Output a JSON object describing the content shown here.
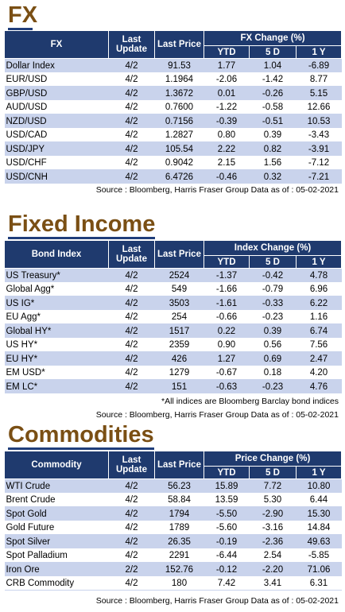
{
  "fx": {
    "title": "FX",
    "headers": {
      "col1": "FX",
      "last_update": "Last Update",
      "last_price": "Last Price",
      "change_group": "FX Change (%)",
      "ytd": "YTD",
      "five_d": "5 D",
      "one_y": "1 Y"
    },
    "rows": [
      {
        "name": "Dollar Index",
        "update": "4/2",
        "price": "91.53",
        "ytd": "1.77",
        "d5": "1.04",
        "y1": "-6.89"
      },
      {
        "name": "EUR/USD",
        "update": "4/2",
        "price": "1.1964",
        "ytd": "-2.06",
        "d5": "-1.42",
        "y1": "8.77"
      },
      {
        "name": "GBP/USD",
        "update": "4/2",
        "price": "1.3672",
        "ytd": "0.01",
        "d5": "-0.26",
        "y1": "5.15"
      },
      {
        "name": "AUD/USD",
        "update": "4/2",
        "price": "0.7600",
        "ytd": "-1.22",
        "d5": "-0.58",
        "y1": "12.66"
      },
      {
        "name": "NZD/USD",
        "update": "4/2",
        "price": "0.7156",
        "ytd": "-0.39",
        "d5": "-0.51",
        "y1": "10.53"
      },
      {
        "name": "USD/CAD",
        "update": "4/2",
        "price": "1.2827",
        "ytd": "0.80",
        "d5": "0.39",
        "y1": "-3.43"
      },
      {
        "name": "USD/JPY",
        "update": "4/2",
        "price": "105.54",
        "ytd": "2.22",
        "d5": "0.82",
        "y1": "-3.91"
      },
      {
        "name": "USD/CHF",
        "update": "4/2",
        "price": "0.9042",
        "ytd": "2.15",
        "d5": "1.56",
        "y1": "-7.12"
      },
      {
        "name": "USD/CNH",
        "update": "4/2",
        "price": "6.4726",
        "ytd": "-0.46",
        "d5": "0.32",
        "y1": "-7.21"
      }
    ],
    "source": "Source : Bloomberg, Harris Fraser Group Data as of : 05-02-2021"
  },
  "fixed_income": {
    "title": "Fixed Income",
    "headers": {
      "col1": "Bond Index",
      "last_update": "Last Update",
      "last_price": "Last Price",
      "change_group": "Index Change (%)",
      "ytd": "YTD",
      "five_d": "5 D",
      "one_y": "1 Y"
    },
    "rows": [
      {
        "name": "US Treasury*",
        "update": "4/2",
        "price": "2524",
        "ytd": "-1.37",
        "d5": "-0.42",
        "y1": "4.78"
      },
      {
        "name": "Global Agg*",
        "update": "4/2",
        "price": "549",
        "ytd": "-1.66",
        "d5": "-0.79",
        "y1": "6.96"
      },
      {
        "name": "US IG*",
        "update": "4/2",
        "price": "3503",
        "ytd": "-1.61",
        "d5": "-0.33",
        "y1": "6.22"
      },
      {
        "name": "EU Agg*",
        "update": "4/2",
        "price": "254",
        "ytd": "-0.66",
        "d5": "-0.23",
        "y1": "1.16"
      },
      {
        "name": "Global HY*",
        "update": "4/2",
        "price": "1517",
        "ytd": "0.22",
        "d5": "0.39",
        "y1": "6.74"
      },
      {
        "name": "US HY*",
        "update": "4/2",
        "price": "2359",
        "ytd": "0.90",
        "d5": "0.56",
        "y1": "7.56"
      },
      {
        "name": "EU HY*",
        "update": "4/2",
        "price": "426",
        "ytd": "1.27",
        "d5": "0.69",
        "y1": "2.47"
      },
      {
        "name": "EM USD*",
        "update": "4/2",
        "price": "1279",
        "ytd": "-0.67",
        "d5": "0.18",
        "y1": "4.20"
      },
      {
        "name": "EM LC*",
        "update": "4/2",
        "price": "151",
        "ytd": "-0.63",
        "d5": "-0.23",
        "y1": "4.76"
      }
    ],
    "note": "*All indices are Bloomberg Barclay bond indices",
    "source": "Source : Bloomberg, Harris Fraser Group Data as of : 05-02-2021"
  },
  "commodities": {
    "title": "Commodities",
    "headers": {
      "col1": "Commodity",
      "last_update": "Last Update",
      "last_price": "Last Price",
      "change_group": "Price Change (%)",
      "ytd": "YTD",
      "five_d": "5 D",
      "one_y": "1 Y"
    },
    "rows": [
      {
        "name": "WTI Crude",
        "update": "4/2",
        "price": "56.23",
        "ytd": "15.89",
        "d5": "7.72",
        "y1": "10.80"
      },
      {
        "name": "Brent Crude",
        "update": "4/2",
        "price": "58.84",
        "ytd": "13.59",
        "d5": "5.30",
        "y1": "6.44"
      },
      {
        "name": "Spot Gold",
        "update": "4/2",
        "price": "1794",
        "ytd": "-5.50",
        "d5": "-2.90",
        "y1": "15.30"
      },
      {
        "name": "Gold Future",
        "update": "4/2",
        "price": "1789",
        "ytd": "-5.60",
        "d5": "-3.16",
        "y1": "14.84"
      },
      {
        "name": "Spot Silver",
        "update": "4/2",
        "price": "26.35",
        "ytd": "-0.19",
        "d5": "-2.36",
        "y1": "49.63"
      },
      {
        "name": "Spot Palladium",
        "update": "4/2",
        "price": "2291",
        "ytd": "-6.44",
        "d5": "2.54",
        "y1": "-5.85"
      },
      {
        "name": "Iron Ore",
        "update": "2/2",
        "price": "152.76",
        "ytd": "-0.12",
        "d5": "-2.20",
        "y1": "71.06"
      },
      {
        "name": "CRB Commodity",
        "update": "4/2",
        "price": "180",
        "ytd": "7.42",
        "d5": "3.41",
        "y1": "6.31"
      }
    ],
    "source": "Source : Bloomberg, Harris Fraser Group Data as of : 05-02-2021"
  },
  "colors": {
    "header_bg": "#1f3a6e",
    "title": "#7a4f14",
    "shade": "#c9d3ec"
  }
}
